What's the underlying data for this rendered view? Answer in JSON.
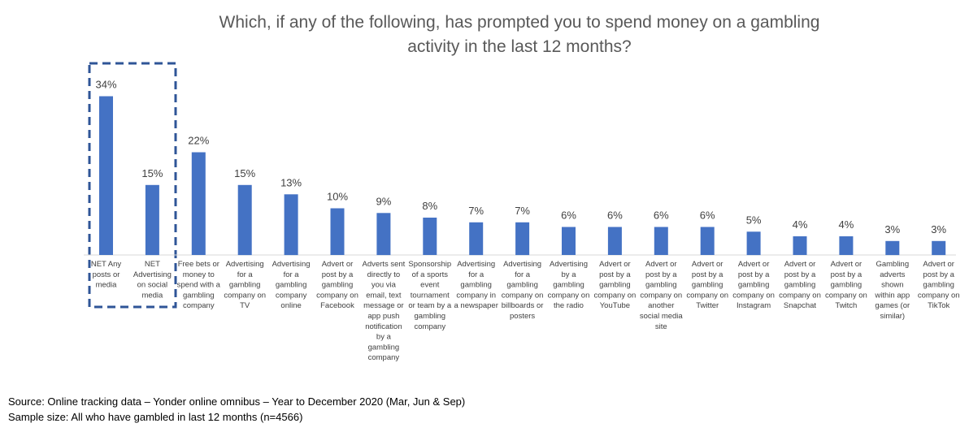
{
  "chart_data": {
    "type": "bar",
    "title": "Which, if any of the following, has prompted you to spend money on a gambling activity in the last 12 months?",
    "title_lines": [
      "Which, if any of the following, has prompted you to spend money on a gambling",
      "activity in the last 12 months?"
    ],
    "categories": [
      "NET Any posts or media",
      "NET Advertising on social media",
      "Free bets or money to spend with a gambling company",
      "Advertising for a gambling company on TV",
      "Advertising for a gambling company online",
      "Advert or post by a gambling company on Facebook",
      "Adverts sent directly to you via email, text message or app push notification by a gambling company",
      "Sponsorship of a sports event tournament or team by a gambling company",
      "Advertising for a gambling company in a newspaper",
      "Advertising for a gambling company on billboards or posters",
      "Advertising by a gambling company on the radio",
      "Advert or post by a gambling company on YouTube",
      "Advert or post by a gambling company on another social media site",
      "Advert or post by a gambling company on Twitter",
      "Advert or post by a gambling company on Instagram",
      "Advert or post by a gambling company on Snapchat",
      "Advert or post by a gambling company on Twitch",
      "Gambling adverts shown within app games (or similar)",
      "Advert or post by a gambling company on TikTok"
    ],
    "category_lines": [
      [
        "NET Any",
        "posts or",
        "media"
      ],
      [
        "NET",
        "Advertising",
        "on social",
        "media"
      ],
      [
        "Free bets or",
        "money to",
        "spend with a",
        "gambling",
        "company"
      ],
      [
        "Advertising",
        "for a",
        "gambling",
        "company on",
        "TV"
      ],
      [
        "Advertising",
        "for a",
        "gambling",
        "company",
        "online"
      ],
      [
        "Advert or",
        "post by a",
        "gambling",
        "company on",
        "Facebook"
      ],
      [
        "Adverts sent",
        "directly to",
        "you via",
        "email, text",
        "message or",
        "app push",
        "notification",
        "by a",
        "gambling",
        "company"
      ],
      [
        "Sponsorship",
        "of a sports",
        "event",
        "tournament",
        "or team by a",
        "gambling",
        "company"
      ],
      [
        "Advertising",
        "for a",
        "gambling",
        "company in",
        "a newspaper"
      ],
      [
        "Advertising",
        "for a",
        "gambling",
        "company on",
        "billboards or",
        "posters"
      ],
      [
        "Advertising",
        "by a",
        "gambling",
        "company on",
        "the radio"
      ],
      [
        "Advert or",
        "post by a",
        "gambling",
        "company on",
        "YouTube"
      ],
      [
        "Advert or",
        "post by a",
        "gambling",
        "company on",
        "another",
        "social media",
        "site"
      ],
      [
        "Advert or",
        "post by a",
        "gambling",
        "company on",
        "Twitter"
      ],
      [
        "Advert or",
        "post by a",
        "gambling",
        "company on",
        "Instagram"
      ],
      [
        "Advert or",
        "post by a",
        "gambling",
        "company on",
        "Snapchat"
      ],
      [
        "Advert or",
        "post by a",
        "gambling",
        "company on",
        "Twitch"
      ],
      [
        "Gambling",
        "adverts",
        "shown",
        "within app",
        "games (or",
        "similar)"
      ],
      [
        "Advert or",
        "post by a",
        "gambling",
        "company on",
        "TikTok"
      ]
    ],
    "values": [
      34,
      15,
      22,
      15,
      13,
      10,
      9,
      8,
      7,
      7,
      6,
      6,
      6,
      6,
      5,
      4,
      4,
      3,
      3
    ],
    "value_labels": [
      "34%",
      "15%",
      "22%",
      "15%",
      "13%",
      "10%",
      "9%",
      "8%",
      "7%",
      "7%",
      "6%",
      "6%",
      "6%",
      "6%",
      "5%",
      "4%",
      "4%",
      "3%",
      "3%"
    ],
    "highlighted_categories": [
      0,
      1
    ],
    "xlabel": "",
    "ylabel": "",
    "ylim": [
      0,
      40
    ],
    "grid": false,
    "legend": "none",
    "bar_color": "#4472C4",
    "highlight_box_color": "#2F5597"
  },
  "footer": {
    "source": "Source: Online tracking data – Yonder online omnibus – Year to December 2020  (Mar, Jun & Sep)",
    "sample": "Sample size: All who have gambled in last 12 months (n=4566)"
  }
}
